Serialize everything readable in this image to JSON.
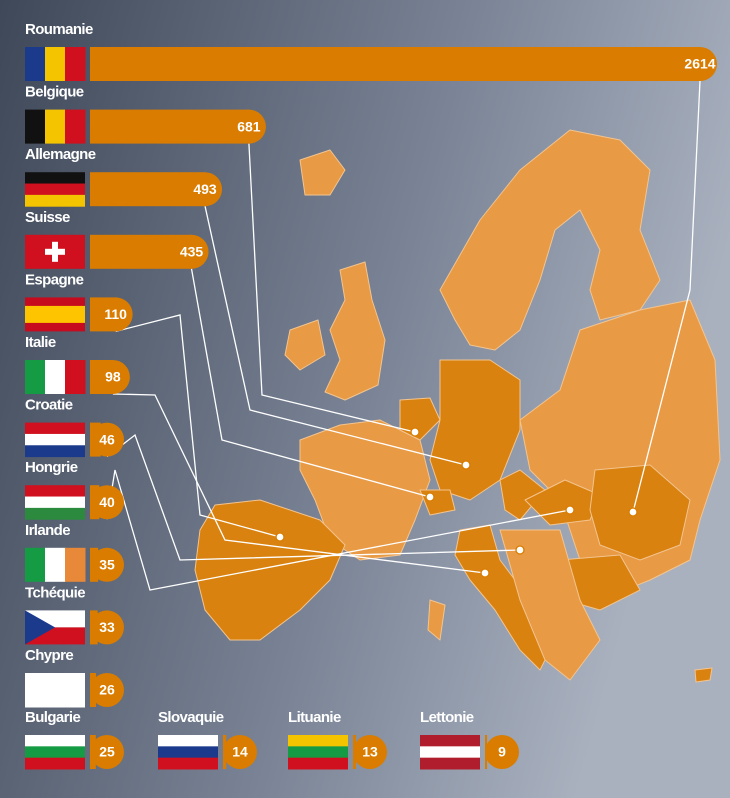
{
  "chart_data": {
    "type": "bar",
    "orientation": "horizontal",
    "categories": [
      "Roumanie",
      "Belgique",
      "Allemagne",
      "Suisse",
      "Espagne",
      "Italie",
      "Croatie",
      "Hongrie",
      "Irlande",
      "Tchéquie",
      "Chypre",
      "Bulgarie",
      "Slovaquie",
      "Lituanie",
      "Lettonie"
    ],
    "values": [
      2614,
      681,
      493,
      435,
      110,
      98,
      46,
      40,
      35,
      33,
      26,
      25,
      14,
      13,
      9
    ],
    "color": "#d97c00"
  }
}
